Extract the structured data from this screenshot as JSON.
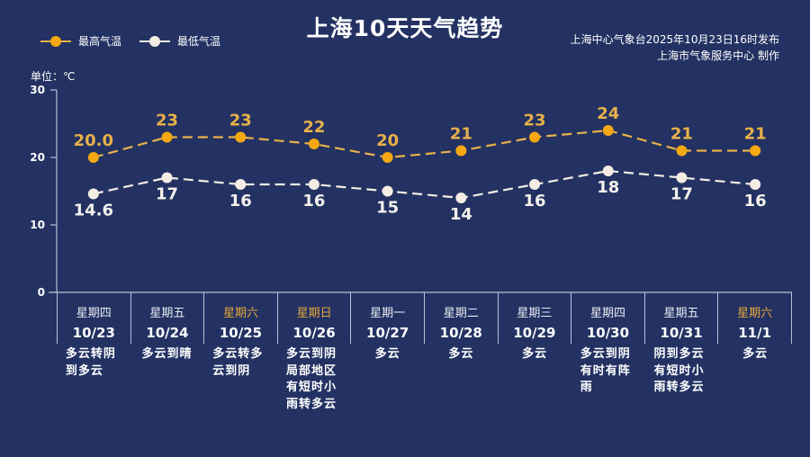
{
  "header": {
    "title": "上海10天天气趋势",
    "issuer_line1": "上海中心气象台2025年10月23日16时发布",
    "issuer_line2": "上海市气象服务中心 制作"
  },
  "legend": [
    {
      "label": "最高气温",
      "color": "#f5a813"
    },
    {
      "label": "最低气温",
      "color": "#f4ede4"
    }
  ],
  "unit_label": "单位：℃",
  "colors": {
    "background": "#233262",
    "high_line": "#f5a813",
    "high_label": "#e8b14a",
    "low_line": "#f4ede4",
    "weekend_text": "#e6a53a",
    "grid": "#b9c2d8"
  },
  "days": [
    {
      "weekday": "星期四",
      "date": "10/23",
      "weekend": false,
      "weather": "多云转阴到多云"
    },
    {
      "weekday": "星期五",
      "date": "10/24",
      "weekend": false,
      "weather": "多云到晴"
    },
    {
      "weekday": "星期六",
      "date": "10/25",
      "weekend": true,
      "weather": "多云转多云到阴"
    },
    {
      "weekday": "星期日",
      "date": "10/26",
      "weekend": true,
      "weather": "多云到阴局部地区有短时小雨转多云"
    },
    {
      "weekday": "星期一",
      "date": "10/27",
      "weekend": false,
      "weather": "多云"
    },
    {
      "weekday": "星期二",
      "date": "10/28",
      "weekend": false,
      "weather": "多云"
    },
    {
      "weekday": "星期三",
      "date": "10/29",
      "weekend": false,
      "weather": "多云"
    },
    {
      "weekday": "星期四",
      "date": "10/30",
      "weekend": false,
      "weather": "多云到阴有时有阵雨"
    },
    {
      "weekday": "星期五",
      "date": "10/31",
      "weekend": false,
      "weather": "阴到多云有短时小雨转多云"
    },
    {
      "weekday": "星期六",
      "date": "11/1",
      "weekend": true,
      "weather": "多云"
    }
  ],
  "chart_data": {
    "type": "line",
    "title": "上海10天天气趋势",
    "xlabel": "",
    "ylabel": "单位：℃",
    "categories": [
      "10/23",
      "10/24",
      "10/25",
      "10/26",
      "10/27",
      "10/28",
      "10/29",
      "10/30",
      "10/31",
      "11/1"
    ],
    "series": [
      {
        "name": "最高气温",
        "values": [
          20.0,
          23,
          23,
          22,
          20,
          21,
          23,
          24,
          21,
          21
        ],
        "labels": [
          "20.0",
          "23",
          "23",
          "22",
          "20",
          "21",
          "23",
          "24",
          "21",
          "21"
        ],
        "style": "dashed",
        "color": "#f5a813"
      },
      {
        "name": "最低气温",
        "values": [
          14.6,
          17,
          16,
          16,
          15,
          14,
          16,
          18,
          17,
          16
        ],
        "labels": [
          "14.6",
          "17",
          "16",
          "16",
          "15",
          "14",
          "16",
          "18",
          "17",
          "16"
        ],
        "style": "dashed",
        "color": "#f4ede4"
      }
    ],
    "yticks": [
      0,
      10,
      20,
      30
    ],
    "ylim": [
      0,
      30
    ],
    "grid": false,
    "legend_position": "top-left"
  }
}
